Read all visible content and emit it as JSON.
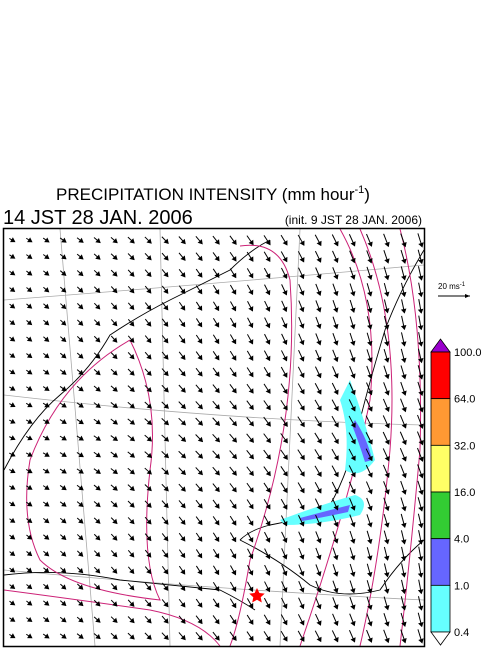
{
  "header": {
    "title": {
      "main": "PRECIPITATION INTENSITY (mm hour",
      "sup": "-1",
      "end": ")"
    },
    "valid_time": "14 JST 28 JAN. 2006",
    "init_time": "(init. 9 JST 28 JAN. 2006)"
  },
  "scale": {
    "main": "20 ms",
    "sup": "-1"
  },
  "colorbar": {
    "labels": [
      "100.0",
      "64.0",
      "32.0",
      "16.0",
      "4.0",
      "1.0",
      "0.4"
    ],
    "colors": [
      "#ff0000",
      "#ff9933",
      "#ffff66",
      "#33cc33",
      "#6666ff",
      "#66ffff"
    ],
    "over_color": "#9900cc",
    "under_color": "#ffffff"
  }
}
